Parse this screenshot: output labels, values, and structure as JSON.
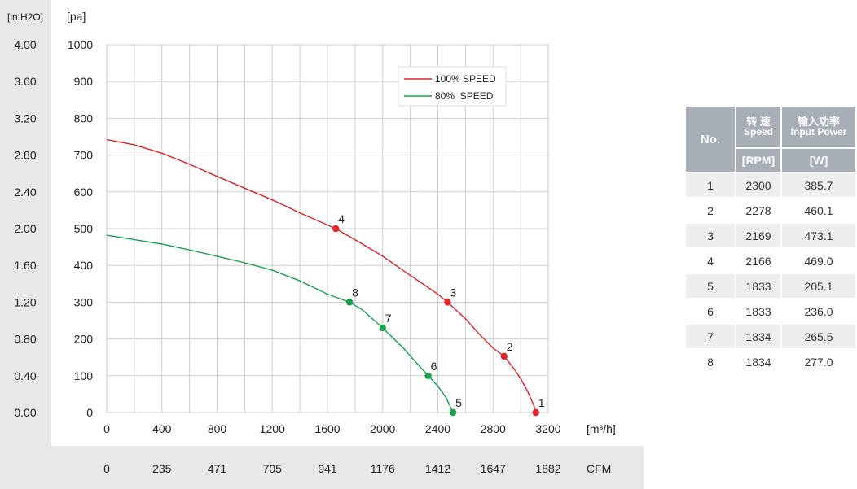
{
  "chart_data": {
    "type": "line",
    "left_axis_unit": "[in.H2O]",
    "left_axis_ticks": [
      "4.00",
      "3.60",
      "3.20",
      "2.80",
      "2.40",
      "2.00",
      "1.60",
      "1.20",
      "0.80",
      "0.40",
      "0.00"
    ],
    "ylabel": "[pa]",
    "ylim": [
      0,
      1000
    ],
    "y_ticks": [
      1000,
      900,
      800,
      700,
      600,
      500,
      400,
      300,
      200,
      100,
      0
    ],
    "xlabel": "[m³/h]",
    "xlim": [
      0,
      3200
    ],
    "x_ticks": [
      0,
      400,
      800,
      1200,
      1600,
      2000,
      2400,
      2800,
      3200
    ],
    "cfm_unit": "CFM",
    "cfm_ticks": [
      "0",
      "235",
      "471",
      "705",
      "941",
      "1176",
      "1412",
      "1647",
      "1882"
    ],
    "grid": true,
    "legend": "top-right",
    "series": [
      {
        "name": "100% SPEED",
        "color": "#e0242b",
        "curve": [
          [
            0,
            742
          ],
          [
            200,
            728
          ],
          [
            400,
            705
          ],
          [
            600,
            675
          ],
          [
            800,
            642
          ],
          [
            1000,
            610
          ],
          [
            1200,
            578
          ],
          [
            1400,
            543
          ],
          [
            1600,
            510
          ],
          [
            1660,
            500
          ],
          [
            1800,
            470
          ],
          [
            2000,
            425
          ],
          [
            2200,
            373
          ],
          [
            2400,
            322
          ],
          [
            2470,
            300
          ],
          [
            2600,
            255
          ],
          [
            2700,
            213
          ],
          [
            2800,
            175
          ],
          [
            2880,
            153
          ],
          [
            2950,
            120
          ],
          [
            3000,
            92
          ],
          [
            3050,
            58
          ],
          [
            3100,
            15
          ],
          [
            3110,
            0
          ]
        ],
        "points": [
          {
            "label": "1",
            "x": 3110,
            "y": 0
          },
          {
            "label": "2",
            "x": 2880,
            "y": 153
          },
          {
            "label": "3",
            "x": 2470,
            "y": 300
          },
          {
            "label": "4",
            "x": 1660,
            "y": 500
          }
        ]
      },
      {
        "name": "80%  SPEED",
        "color": "#1aa04e",
        "curve": [
          [
            0,
            482
          ],
          [
            200,
            470
          ],
          [
            400,
            458
          ],
          [
            600,
            442
          ],
          [
            800,
            425
          ],
          [
            1000,
            407
          ],
          [
            1200,
            387
          ],
          [
            1400,
            358
          ],
          [
            1600,
            322
          ],
          [
            1760,
            300
          ],
          [
            1850,
            280
          ],
          [
            2000,
            230
          ],
          [
            2150,
            175
          ],
          [
            2250,
            133
          ],
          [
            2330,
            100
          ],
          [
            2400,
            72
          ],
          [
            2460,
            40
          ],
          [
            2510,
            0
          ]
        ],
        "points": [
          {
            "label": "5",
            "x": 2510,
            "y": 0
          },
          {
            "label": "6",
            "x": 2330,
            "y": 100
          },
          {
            "label": "7",
            "x": 2000,
            "y": 230
          },
          {
            "label": "8",
            "x": 1760,
            "y": 300
          }
        ]
      }
    ]
  },
  "table": {
    "header_no": "No.",
    "header_speed_cn": "转 速",
    "header_speed_en": "Speed",
    "header_power_cn": "输入功率",
    "header_power_en": "Input Power",
    "unit_speed": "[RPM]",
    "unit_power": "[W]",
    "rows": [
      {
        "no": "1",
        "rpm": "2300",
        "w": "385.7"
      },
      {
        "no": "2",
        "rpm": "2278",
        "w": "460.1"
      },
      {
        "no": "3",
        "rpm": "2169",
        "w": "473.1"
      },
      {
        "no": "4",
        "rpm": "2166",
        "w": "469.0"
      },
      {
        "no": "5",
        "rpm": "1833",
        "w": "205.1"
      },
      {
        "no": "6",
        "rpm": "1833",
        "w": "236.0"
      },
      {
        "no": "7",
        "rpm": "1834",
        "w": "265.5"
      },
      {
        "no": "8",
        "rpm": "1834",
        "w": "277.0"
      }
    ]
  }
}
